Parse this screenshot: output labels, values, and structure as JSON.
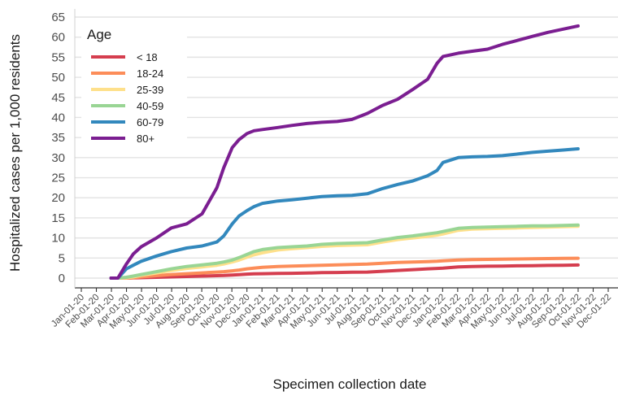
{
  "chart_data": {
    "type": "line",
    "title": "",
    "xlabel": "Specimen collection date",
    "ylabel": "Hospitalized cases per 1,000 residents",
    "ylim": [
      0,
      65
    ],
    "yticks": [
      0,
      5,
      10,
      15,
      20,
      25,
      30,
      35,
      40,
      45,
      50,
      55,
      60,
      65
    ],
    "xticks": [
      "Jan-01-20",
      "Feb-01-20",
      "Mar-01-20",
      "Apr-01-20",
      "May-01-20",
      "Jun-01-20",
      "Jul-01-20",
      "Aug-01-20",
      "Sep-01-20",
      "Oct-01-20",
      "Nov-01-20",
      "Dec-01-20",
      "Jan-01-21",
      "Feb-01-21",
      "Mar-01-21",
      "Apr-01-21",
      "May-01-21",
      "Jun-01-21",
      "Jul-01-21",
      "Aug-01-21",
      "Sep-01-21",
      "Oct-01-21",
      "Nov-01-21",
      "Dec-01-21",
      "Jan-01-22",
      "Feb-01-22",
      "Mar-01-22",
      "Apr-01-22",
      "May-01-22",
      "Jun-01-22",
      "Jul-01-22",
      "Aug-01-22",
      "Sep-01-22",
      "Oct-01-22",
      "Nov-01-22",
      "Dec-01-22"
    ],
    "grid": true,
    "legend": {
      "title": "Age",
      "position": "top-left"
    },
    "x": [
      "2020-03-01",
      "2020-03-15",
      "2020-04-01",
      "2020-04-15",
      "2020-05-01",
      "2020-06-01",
      "2020-07-01",
      "2020-08-01",
      "2020-09-01",
      "2020-10-01",
      "2020-10-15",
      "2020-11-01",
      "2020-11-15",
      "2020-12-01",
      "2020-12-15",
      "2021-01-01",
      "2021-02-01",
      "2021-03-01",
      "2021-04-01",
      "2021-05-01",
      "2021-06-01",
      "2021-07-01",
      "2021-08-01",
      "2021-09-01",
      "2021-10-01",
      "2021-11-01",
      "2021-12-01",
      "2021-12-20",
      "2022-01-01",
      "2022-02-01",
      "2022-03-01",
      "2022-04-01",
      "2022-05-01",
      "2022-06-01",
      "2022-07-01",
      "2022-08-01",
      "2022-09-01",
      "2022-10-01"
    ],
    "series": [
      {
        "name": "< 18",
        "color": "#d53e4f",
        "values": [
          0,
          0,
          0,
          0.05,
          0.1,
          0.2,
          0.3,
          0.4,
          0.5,
          0.6,
          0.65,
          0.75,
          0.85,
          1,
          1.05,
          1.1,
          1.15,
          1.2,
          1.25,
          1.35,
          1.4,
          1.45,
          1.5,
          1.7,
          1.9,
          2.1,
          2.3,
          2.4,
          2.5,
          2.8,
          2.9,
          2.95,
          3.0,
          3.05,
          3.1,
          3.15,
          3.2,
          3.25
        ]
      },
      {
        "name": "18-24",
        "color": "#fc8d59",
        "values": [
          0,
          0,
          0,
          0.1,
          0.3,
          0.6,
          0.9,
          1.1,
          1.3,
          1.5,
          1.6,
          1.8,
          2.0,
          2.3,
          2.5,
          2.7,
          2.9,
          3.0,
          3.1,
          3.2,
          3.3,
          3.4,
          3.5,
          3.7,
          3.9,
          4.0,
          4.1,
          4.2,
          4.3,
          4.5,
          4.6,
          4.65,
          4.7,
          4.75,
          4.8,
          4.85,
          4.9,
          4.95
        ]
      },
      {
        "name": "25-39",
        "color": "#fee08b",
        "values": [
          0,
          0,
          0.1,
          0.3,
          0.7,
          1.3,
          1.9,
          2.4,
          2.8,
          3.2,
          3.5,
          4.0,
          4.5,
          5.2,
          5.8,
          6.3,
          7.0,
          7.3,
          7.6,
          7.9,
          8.1,
          8.2,
          8.3,
          9.0,
          9.6,
          10.0,
          10.4,
          10.7,
          11.0,
          11.9,
          12.2,
          12.3,
          12.4,
          12.5,
          12.6,
          12.7,
          12.8,
          12.9
        ]
      },
      {
        "name": "40-59",
        "color": "#99d594",
        "values": [
          0,
          0,
          0.2,
          0.5,
          0.9,
          1.6,
          2.3,
          2.9,
          3.3,
          3.7,
          4.0,
          4.5,
          5.1,
          5.9,
          6.6,
          7.1,
          7.6,
          7.8,
          8.0,
          8.4,
          8.6,
          8.7,
          8.8,
          9.5,
          10.1,
          10.5,
          11.0,
          11.3,
          11.6,
          12.4,
          12.6,
          12.7,
          12.8,
          12.9,
          13.0,
          13.0,
          13.1,
          13.2
        ]
      },
      {
        "name": "60-79",
        "color": "#3288bd",
        "values": [
          0,
          0,
          2.3,
          3.2,
          4.2,
          5.5,
          6.6,
          7.5,
          8.0,
          9.0,
          10.5,
          13.5,
          15.5,
          16.8,
          17.8,
          18.6,
          19.2,
          19.5,
          19.9,
          20.3,
          20.5,
          20.6,
          21.0,
          22.3,
          23.3,
          24.2,
          25.5,
          26.8,
          28.8,
          30.0,
          30.2,
          30.3,
          30.5,
          30.9,
          31.3,
          31.6,
          31.9,
          32.2
        ]
      },
      {
        "name": "80+",
        "color": "#7b1e91",
        "values": [
          0,
          0,
          3.5,
          6.0,
          7.8,
          10.0,
          12.5,
          13.5,
          16.0,
          22.5,
          27.5,
          32.5,
          34.5,
          36.0,
          36.7,
          37.0,
          37.5,
          38.0,
          38.5,
          38.8,
          39.0,
          39.5,
          41.0,
          43.0,
          44.5,
          47.0,
          49.5,
          53.5,
          55.2,
          56.0,
          56.5,
          57.0,
          58.2,
          59.2,
          60.2,
          61.2,
          62.0,
          62.8
        ]
      }
    ]
  }
}
